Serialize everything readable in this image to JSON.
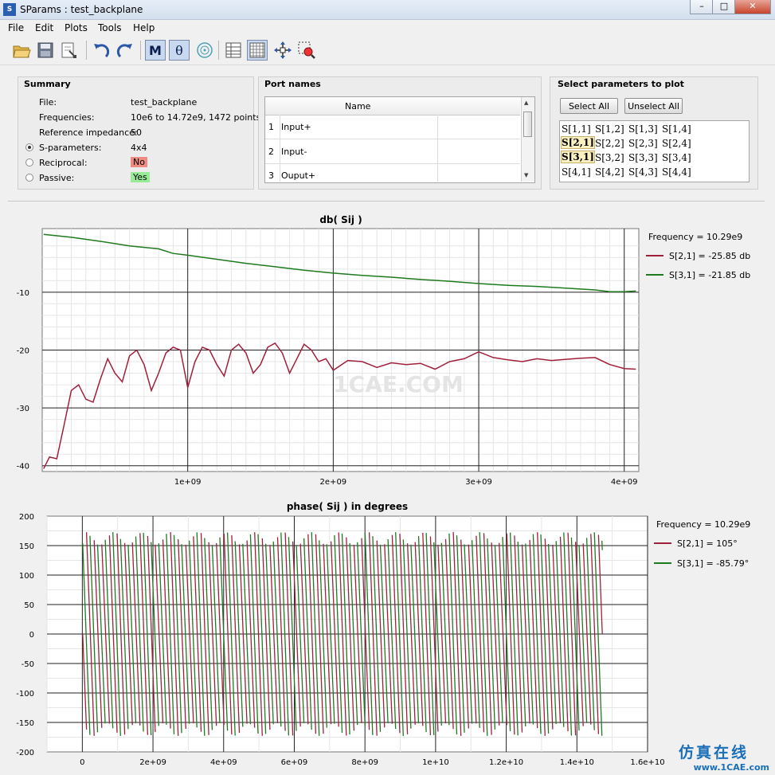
{
  "window": {
    "title": "SParams : test_backplane",
    "app_icon": "S"
  },
  "menu": [
    "File",
    "Edit",
    "Plots",
    "Tools",
    "Help"
  ],
  "toolbar": [
    "open-icon",
    "save-icon",
    "export-icon",
    "undo-icon",
    "redo-icon",
    "magnitude-icon",
    "phase-icon",
    "smith-chart-icon",
    "table-icon",
    "grid-icon",
    "pan-icon",
    "zoom-icon"
  ],
  "toolbar_text": {
    "magnitude": "M",
    "phase": "θ"
  },
  "summary": {
    "title": "Summary",
    "file_label": "File:",
    "file_value": "test_backplane",
    "freq_label": "Frequencies:",
    "freq_value": "10e6 to 14.72e9, 1472 points",
    "refimp_label": "Reference impedance:",
    "refimp_value": "50",
    "sparam_label": "S-parameters:",
    "sparam_value": "4x4",
    "recip_label": "Reciprocal:",
    "recip_value": "No",
    "passive_label": "Passive:",
    "passive_value": "Yes"
  },
  "ports": {
    "title": "Port names",
    "header": "Name",
    "rows": [
      {
        "num": "1",
        "name": "Input+"
      },
      {
        "num": "2",
        "name": "Input-"
      },
      {
        "num": "3",
        "name": "Ouput+"
      }
    ]
  },
  "select": {
    "title": "Select parameters to plot",
    "select_all": "Select All",
    "unselect_all": "Unselect All",
    "grid": [
      [
        "S[1,1]",
        "S[1,2]",
        "S[1,3]",
        "S[1,4]"
      ],
      [
        "S[2,1]",
        "S[2,2]",
        "S[2,3]",
        "S[2,4]"
      ],
      [
        "S[3,1]",
        "S[3,2]",
        "S[3,3]",
        "S[3,4]"
      ],
      [
        "S[4,1]",
        "S[4,2]",
        "S[4,3]",
        "S[4,4]"
      ]
    ],
    "selected": [
      "S[2,1]",
      "S[3,1]"
    ]
  },
  "watermark": "1CAE.COM",
  "corner_logo": {
    "text": "仿真在线",
    "url": "www.1CAE.com"
  },
  "colors": {
    "s21": "#a0203c",
    "s31": "#1e7a1e",
    "reciprocal_bad": "#ee8a80",
    "passive_good": "#98ec98"
  },
  "chart_data": [
    {
      "type": "line",
      "title": "db( Sij )",
      "xlim": [
        0,
        4100000000
      ],
      "ylim": [
        -41,
        1
      ],
      "yticks": [
        -10,
        -20,
        -30,
        -40
      ],
      "ytick_labels": [
        "-10",
        "-20",
        "-30",
        "-40"
      ],
      "xticks": [
        1000000000,
        2000000000,
        3000000000,
        4000000000
      ],
      "xtick_labels": [
        "1e+09",
        "2e+09",
        "3e+09",
        "4e+09"
      ],
      "legend_header": "Frequency = 10.29e9",
      "legend_placement": "right",
      "series": [
        {
          "name": "S[2,1] = -25.85 db",
          "x": [
            10000000.0,
            50000000.0,
            100000000.0,
            150000000.0,
            200000000.0,
            250000000.0,
            300000000.0,
            350000000.0,
            400000000.0,
            450000000.0,
            500000000.0,
            550000000.0,
            600000000.0,
            650000000.0,
            700000000.0,
            750000000.0,
            800000000.0,
            850000000.0,
            900000000.0,
            950000000.0,
            1000000000.0,
            1050000000.0,
            1100000000.0,
            1150000000.0,
            1200000000.0,
            1250000000.0,
            1300000000.0,
            1350000000.0,
            1400000000.0,
            1450000000.0,
            1500000000.0,
            1550000000.0,
            1600000000.0,
            1650000000.0,
            1700000000.0,
            1750000000.0,
            1800000000.0,
            1850000000.0,
            1900000000.0,
            1950000000.0,
            2000000000.0,
            2100000000.0,
            2200000000.0,
            2300000000.0,
            2400000000.0,
            2500000000.0,
            2600000000.0,
            2700000000.0,
            2800000000.0,
            2900000000.0,
            3000000000.0,
            3100000000.0,
            3200000000.0,
            3300000000.0,
            3400000000.0,
            3500000000.0,
            3600000000.0,
            3700000000.0,
            3800000000.0,
            3900000000.0,
            4000000000.0,
            4080000000.0
          ],
          "y": [
            -40.5,
            -38.5,
            -38.8,
            -33,
            -27,
            -26,
            -28.5,
            -29,
            -25,
            -21.5,
            -24,
            -25.5,
            -21,
            -20,
            -22.5,
            -27,
            -24,
            -20.5,
            -19.5,
            -20,
            -26.5,
            -22,
            -19.5,
            -20,
            -22.5,
            -24.5,
            -20,
            -19,
            -20.5,
            -24,
            -22.5,
            -19.5,
            -18.8,
            -20.5,
            -24,
            -21.5,
            -19,
            -20,
            -22,
            -21.5,
            -23.5,
            -21.8,
            -22,
            -23,
            -22.2,
            -22.5,
            -22.3,
            -23.3,
            -22,
            -21.5,
            -20.3,
            -21.3,
            -21.7,
            -22,
            -21.5,
            -21.8,
            -21.6,
            -21.4,
            -21.3,
            -22.5,
            -23.2,
            -23.3
          ]
        },
        {
          "name": "S[3,1] = -21.85 db",
          "x": [
            10000000.0,
            200000000.0,
            400000000.0,
            600000000.0,
            800000000.0,
            900000000.0,
            1000000000.0,
            1200000000.0,
            1400000000.0,
            1600000000.0,
            1800000000.0,
            2000000000.0,
            2200000000.0,
            2400000000.0,
            2600000000.0,
            2800000000.0,
            3000000000.0,
            3200000000.0,
            3400000000.0,
            3600000000.0,
            3800000000.0,
            3900000000.0,
            4000000000.0,
            4080000000.0
          ],
          "y": [
            0,
            -0.5,
            -1.2,
            -2.0,
            -2.5,
            -3.3,
            -3.6,
            -4.3,
            -5.0,
            -5.6,
            -6.2,
            -6.7,
            -7.1,
            -7.4,
            -7.8,
            -8.1,
            -8.5,
            -8.8,
            -9.0,
            -9.3,
            -9.6,
            -9.9,
            -9.9,
            -9.8
          ]
        }
      ]
    },
    {
      "type": "line",
      "title": "phase( Sij ) in degrees",
      "xlim": [
        -1000000000,
        16000000000
      ],
      "ylim": [
        -200,
        200
      ],
      "yticks": [
        200,
        150,
        100,
        50,
        0,
        -50,
        -100,
        -150,
        -200
      ],
      "ytick_labels": [
        "200",
        "150",
        "100",
        "50",
        "0",
        "-50",
        "-100",
        "-150",
        "-200"
      ],
      "xticks": [
        0,
        2000000000,
        4000000000,
        6000000000,
        8000000000,
        10000000000,
        12000000000,
        14000000000,
        16000000000
      ],
      "xtick_labels": [
        "0",
        "2e+09",
        "4e+09",
        "6e+09",
        "8e+09",
        "1e+10",
        "1.2e+10",
        "1.4e+10",
        "1.6e+10"
      ],
      "legend_header": "Frequency = 10.29e9",
      "legend_placement": "right",
      "wrap_count": 68,
      "x_end": 14720000000,
      "series": [
        {
          "name": "S[2,1] = 105°",
          "phase_offset": 0
        },
        {
          "name": "S[3,1] = -85.79°",
          "phase_offset": 0.45
        }
      ]
    }
  ]
}
